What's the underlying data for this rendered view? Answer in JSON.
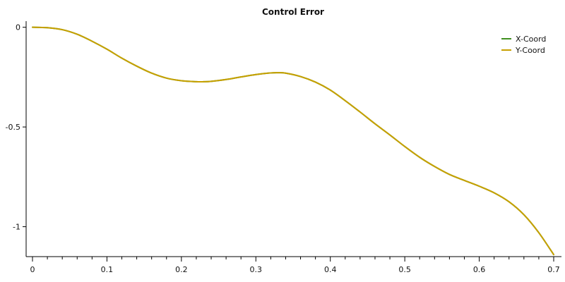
{
  "chart_data": {
    "type": "line",
    "title": "Control Error",
    "xlabel": "",
    "ylabel": "",
    "xlim": [
      0,
      0.7
    ],
    "ylim": [
      -1.15,
      0.02
    ],
    "x_ticks_major": [
      0,
      0.1,
      0.2,
      0.3,
      0.4,
      0.5,
      0.6,
      0.7
    ],
    "x_tick_labels": [
      "0",
      "0.1",
      "0.2",
      "0.3",
      "0.4",
      "0.5",
      "0.6",
      "0.7"
    ],
    "y_ticks": [
      0,
      -0.5,
      -1
    ],
    "y_tick_labels": [
      "0",
      "-0.5",
      "-1"
    ],
    "grid": false,
    "legend_position": "top-right",
    "series": [
      {
        "name": "X-Coord",
        "color": "#3f8f1f",
        "x": [
          0,
          0.02,
          0.04,
          0.06,
          0.08,
          0.1,
          0.12,
          0.14,
          0.16,
          0.18,
          0.2,
          0.22,
          0.23,
          0.24,
          0.26,
          0.28,
          0.3,
          0.32,
          0.33,
          0.34,
          0.36,
          0.38,
          0.4,
          0.42,
          0.44,
          0.46,
          0.48,
          0.5,
          0.52,
          0.54,
          0.56,
          0.58,
          0.6,
          0.62,
          0.64,
          0.66,
          0.68,
          0.7
        ],
        "y": [
          0,
          -0.002,
          -0.012,
          -0.035,
          -0.07,
          -0.11,
          -0.155,
          -0.195,
          -0.23,
          -0.255,
          -0.268,
          -0.273,
          -0.273,
          -0.271,
          -0.262,
          -0.249,
          -0.237,
          -0.229,
          -0.228,
          -0.23,
          -0.247,
          -0.275,
          -0.315,
          -0.368,
          -0.425,
          -0.484,
          -0.54,
          -0.598,
          -0.652,
          -0.698,
          -0.738,
          -0.768,
          -0.797,
          -0.83,
          -0.875,
          -0.94,
          -1.03,
          -1.14
        ]
      },
      {
        "name": "Y-Coord",
        "color": "#c8a000",
        "x": [
          0,
          0.02,
          0.04,
          0.06,
          0.08,
          0.1,
          0.12,
          0.14,
          0.16,
          0.18,
          0.2,
          0.22,
          0.23,
          0.24,
          0.26,
          0.28,
          0.3,
          0.32,
          0.33,
          0.34,
          0.36,
          0.38,
          0.4,
          0.42,
          0.44,
          0.46,
          0.48,
          0.5,
          0.52,
          0.54,
          0.56,
          0.58,
          0.6,
          0.62,
          0.64,
          0.66,
          0.68,
          0.7
        ],
        "y": [
          0,
          -0.002,
          -0.012,
          -0.035,
          -0.07,
          -0.11,
          -0.155,
          -0.195,
          -0.23,
          -0.255,
          -0.268,
          -0.273,
          -0.273,
          -0.271,
          -0.262,
          -0.249,
          -0.237,
          -0.229,
          -0.228,
          -0.23,
          -0.247,
          -0.275,
          -0.315,
          -0.368,
          -0.425,
          -0.484,
          -0.54,
          -0.598,
          -0.652,
          -0.698,
          -0.738,
          -0.768,
          -0.797,
          -0.83,
          -0.875,
          -0.94,
          -1.03,
          -1.14
        ]
      }
    ]
  }
}
